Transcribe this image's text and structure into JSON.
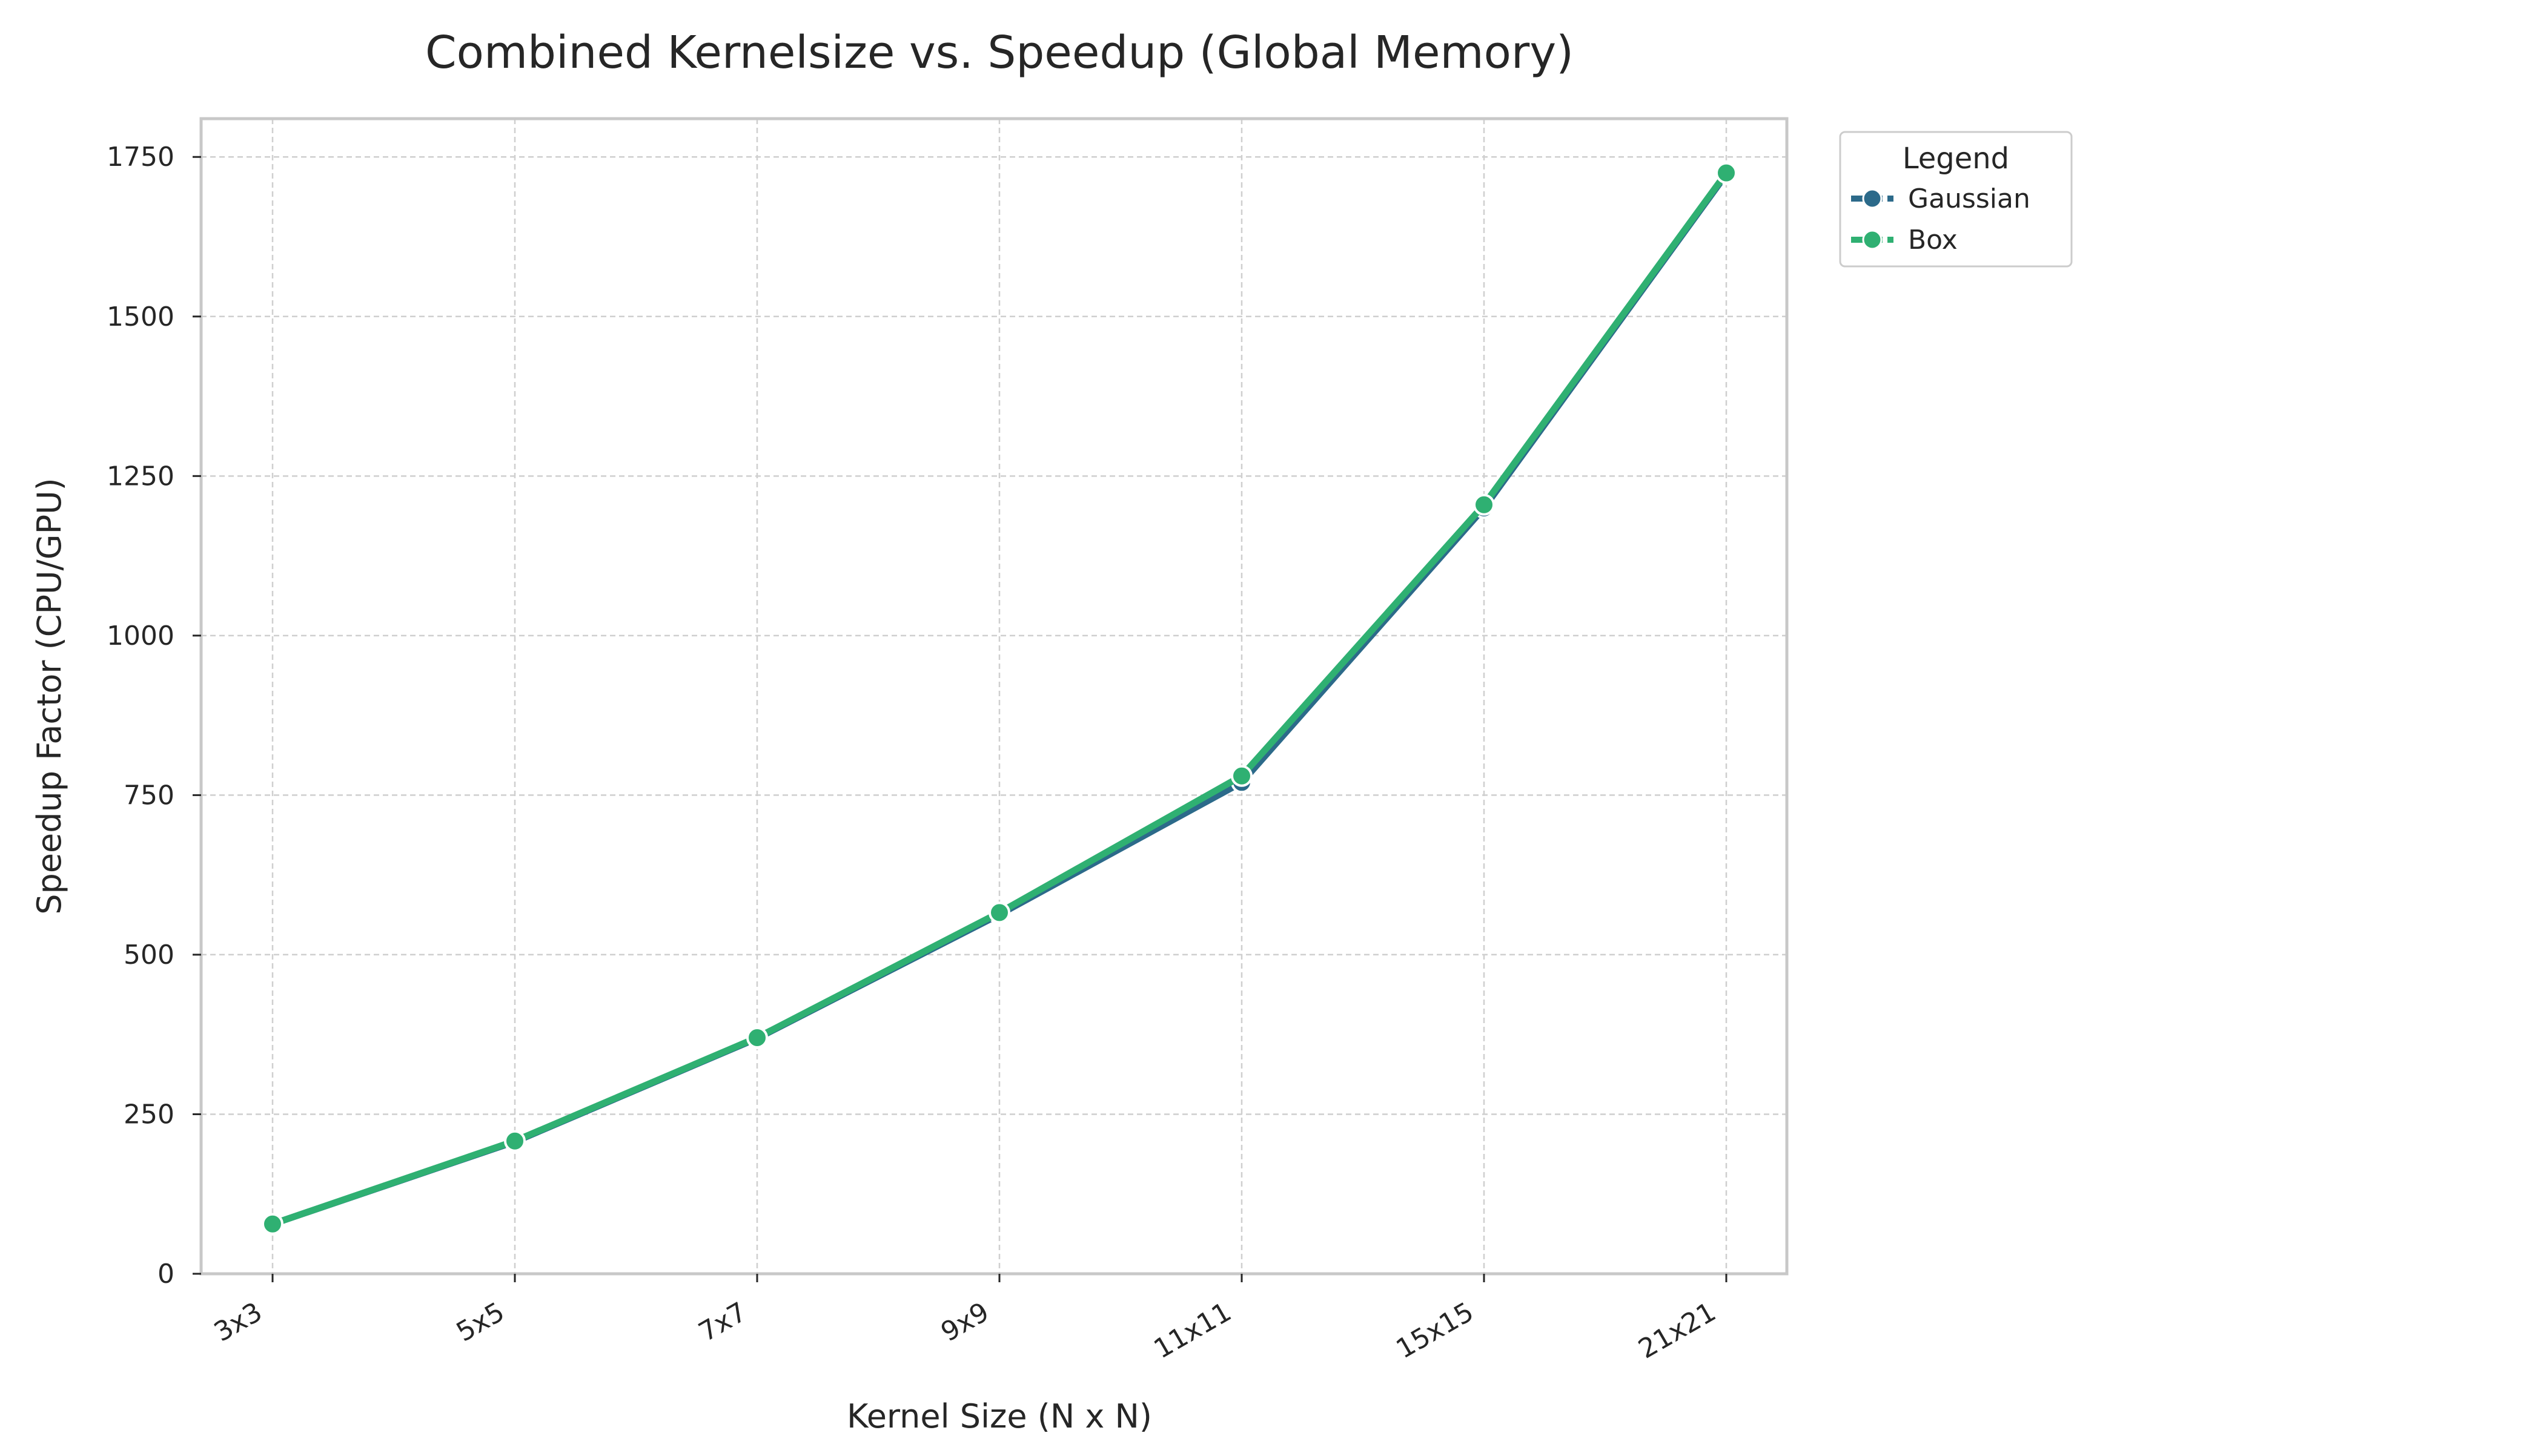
{
  "chart_data": {
    "type": "line",
    "title": "Combined Kernelsize vs. Speedup (Global Memory)",
    "xlabel": "Kernel Size (N x N)",
    "ylabel": "Speedup Factor (CPU/GPU)",
    "categories": [
      "3x3",
      "5x5",
      "7x7",
      "9x9",
      "11x11",
      "15x15",
      "21x21"
    ],
    "ylim": [
      0,
      1810
    ],
    "yticks": [
      0,
      250,
      500,
      750,
      1000,
      1250,
      1500,
      1750
    ],
    "grid": true,
    "legend": {
      "title": "Legend",
      "placement": "outside-top-right"
    },
    "series": [
      {
        "name": "Gaussian",
        "color": "#2c6a8a",
        "values": [
          78,
          207,
          369,
          563,
          770,
          1200,
          1723
        ]
      },
      {
        "name": "Box",
        "color": "#2fb072",
        "values": [
          78,
          208,
          370,
          566,
          780,
          1205,
          1725
        ]
      }
    ]
  }
}
